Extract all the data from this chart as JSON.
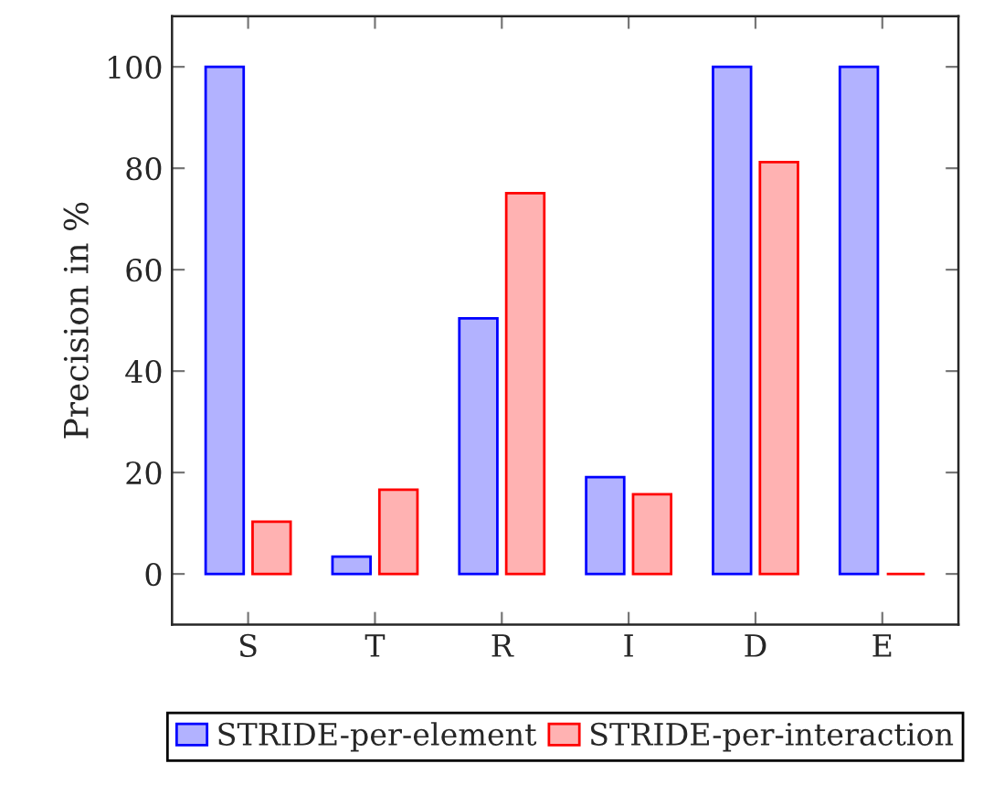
{
  "chart_data": {
    "type": "bar",
    "ylabel": "Precision in %",
    "categories": [
      "S",
      "T",
      "R",
      "I",
      "D",
      "E"
    ],
    "series": [
      {
        "name": "STRIDE-per-element",
        "color": "#0000ff",
        "values": [
          100,
          3.4,
          50.4,
          19.1,
          100,
          100
        ]
      },
      {
        "name": "STRIDE-per-interaction",
        "color": "#ff0000",
        "values": [
          10.3,
          16.6,
          75.1,
          15.7,
          81.2,
          0
        ]
      }
    ],
    "ylim": [
      -10,
      110
    ],
    "yticks": [
      0,
      20,
      40,
      60,
      80,
      100
    ],
    "grid": false,
    "legend": "bottom"
  }
}
